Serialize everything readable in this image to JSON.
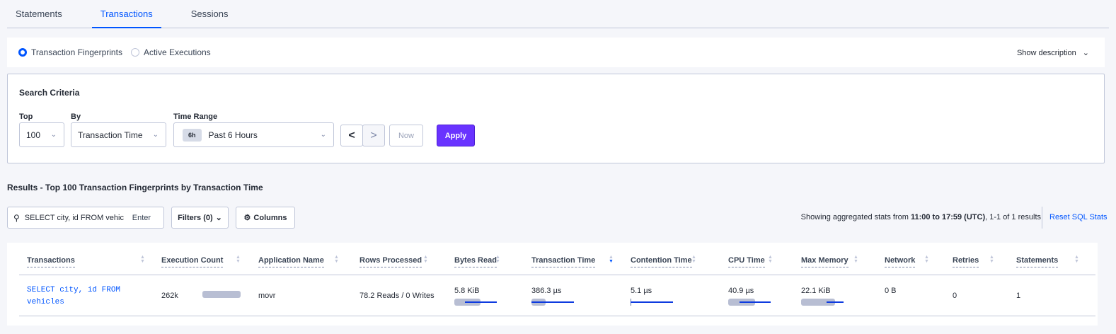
{
  "tabs": [
    {
      "label": "Statements"
    },
    {
      "label": "Transactions",
      "active": true
    },
    {
      "label": "Sessions"
    }
  ],
  "view_mode": {
    "options": [
      {
        "label": "Transaction Fingerprints",
        "selected": true
      },
      {
        "label": "Active Executions",
        "selected": false
      }
    ],
    "show_description": "Show description"
  },
  "search_criteria": {
    "title": "Search Criteria",
    "top_label": "Top",
    "top_value": "100",
    "by_label": "By",
    "by_value": "Transaction Time",
    "time_range_label": "Time Range",
    "time_badge": "6h",
    "time_value": "Past 6 Hours",
    "now_label": "Now",
    "apply_label": "Apply",
    "prev": "<",
    "next": ">"
  },
  "results_title": "Results - Top 100 Transaction Fingerprints by Transaction Time",
  "search": {
    "value": "SELECT city, id FROM vehicles W",
    "enter": "Enter"
  },
  "filters_label": "Filters (0)",
  "columns_label": "Columns",
  "summary": {
    "prefix": "Showing aggregated stats from ",
    "range": "11:00 to 17:59 (UTC)",
    "suffix": ", 1-1 of 1 results"
  },
  "reset_label": "Reset SQL Stats",
  "table": {
    "headers": [
      "Transactions",
      "Execution Count",
      "Application Name",
      "Rows Processed",
      "Bytes Read",
      "Transaction Time",
      "Contention Time",
      "CPU Time",
      "Max Memory",
      "Network",
      "Retries",
      "Statements"
    ],
    "sorted_by": "Transaction Time",
    "rows": [
      {
        "transaction": "SELECT city, id FROM vehicles",
        "execution_count": "262k",
        "application_name": "movr",
        "rows_processed": "78.2 Reads / 0 Writes",
        "bytes_read": "5.8 KiB",
        "transaction_time": "386.3 µs",
        "contention_time": "5.1 µs",
        "cpu_time": "40.9 µs",
        "max_memory": "22.1 KiB",
        "network": "0 B",
        "retries": "0",
        "statements": "1",
        "bars": {
          "execution_count": {
            "mean": 0.9
          },
          "bytes_read": {
            "mean": 0.62,
            "std_from": 0.25,
            "std_to": 1.0
          },
          "transaction_time": {
            "mean": 0.33,
            "std_from": 0.0,
            "std_to": 1.0
          },
          "contention_time": {
            "mean": 0.0,
            "std_from": 0.0,
            "std_to": 1.0
          },
          "cpu_time": {
            "mean": 0.63,
            "std_from": 0.27,
            "std_to": 1.0
          },
          "max_memory": {
            "mean": 0.8,
            "std_from": 0.6,
            "std_to": 1.0
          }
        }
      }
    ]
  },
  "colors": {
    "accent": "#0055ff",
    "apply": "#6933ff",
    "bar_mean": "#b8bed3",
    "bar_std": "#0e3bdf"
  }
}
